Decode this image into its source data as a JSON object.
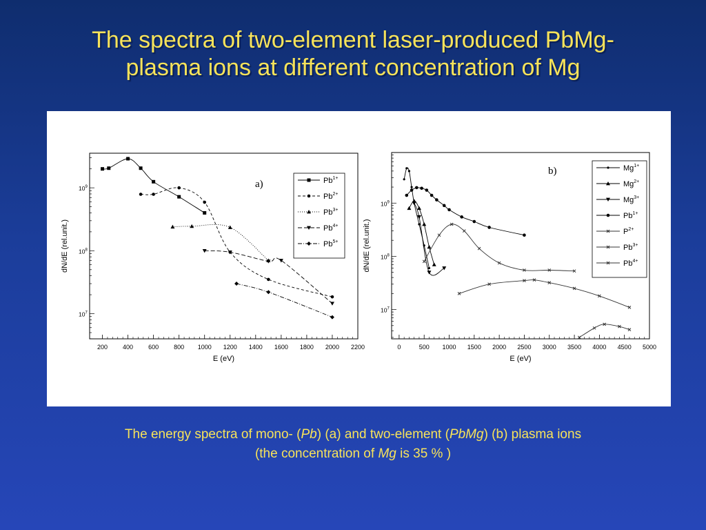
{
  "slide": {
    "title_line1": "The spectra of two-element laser-produced PbMg-",
    "title_line2": "plasma ions at different concentration of Mg",
    "caption": {
      "p1": "The energy spectra of mono- (",
      "pb": "Pb",
      "p2": ") (a) and two-element (",
      "pbmg": "PbMg",
      "p3": ") (b) plasma ions",
      "p4": "(the concentration of ",
      "mg": "Mg",
      "p5": " is 35 % )"
    }
  },
  "chart_data": [
    {
      "type": "line",
      "panel_label": "a)",
      "xlabel": "E  (eV)",
      "ylabel": "dN/dE  (rel.unit.)",
      "xlim": [
        100,
        2200
      ],
      "xticks": [
        200,
        400,
        600,
        800,
        1000,
        1200,
        1400,
        1600,
        1800,
        2000,
        2200
      ],
      "ylim_log10": [
        6.6,
        9.55
      ],
      "yscale": "log",
      "ytick_labels": [
        {
          "base": "10",
          "exp": "9",
          "log": 9
        },
        {
          "base": "10",
          "exp": "8",
          "log": 8
        },
        {
          "base": "10",
          "exp": "7",
          "log": 7
        }
      ],
      "legend_position": "top-right",
      "series": [
        {
          "name": "Pb",
          "charge": "1+",
          "marker": "square",
          "dash": "",
          "color": "#000000",
          "points": [
            [
              200,
              2000000000.0
            ],
            [
              250,
              2050000000.0
            ],
            [
              400,
              2900000000.0
            ],
            [
              500,
              2050000000.0
            ],
            [
              600,
              1250000000.0
            ],
            [
              800,
              720000000.0
            ],
            [
              1000,
              400000000.0
            ]
          ]
        },
        {
          "name": "Pb",
          "charge": "2+",
          "marker": "circle",
          "dash": "4,3",
          "color": "#000000",
          "points": [
            [
              500,
              790000000.0
            ],
            [
              600,
              790000000.0
            ],
            [
              800,
              1000000000.0
            ],
            [
              1000,
              590000000.0
            ],
            [
              1200,
              95000000.0
            ],
            [
              1500,
              35000000.0
            ],
            [
              2000,
              18500000.0
            ]
          ]
        },
        {
          "name": "Pb",
          "charge": "3+",
          "marker": "triangle-up",
          "dash": "1,2",
          "color": "#000000",
          "points": [
            [
              750,
              240000000.0
            ],
            [
              900,
              245000000.0
            ],
            [
              1200,
              235000000.0
            ],
            [
              1500,
              70000000.0
            ]
          ]
        },
        {
          "name": "Pb",
          "charge": "4+",
          "marker": "triangle-down",
          "dash": "6,3",
          "color": "#000000",
          "points": [
            [
              1000,
              100000000.0
            ],
            [
              1200,
              95000000.0
            ],
            [
              1500,
              68000000.0
            ],
            [
              1600,
              70000000.0
            ],
            [
              2000,
              14500000.0
            ]
          ]
        },
        {
          "name": "Pb",
          "charge": "5+",
          "marker": "diamond",
          "dash": "6,2,1,2",
          "color": "#000000",
          "points": [
            [
              1250,
              30000000.0
            ],
            [
              1500,
              22000000.0
            ],
            [
              2000,
              8800000.0
            ]
          ]
        }
      ]
    },
    {
      "type": "line",
      "panel_label": "b)",
      "xlabel": "E  (eV)",
      "ylabel": "dN/dE  (rel.unit.)",
      "xlim": [
        -150,
        5000
      ],
      "xticks": [
        0,
        500,
        1000,
        1500,
        2000,
        2500,
        3000,
        3500,
        4000,
        4500,
        5000
      ],
      "ylim_log10": [
        6.45,
        9.95
      ],
      "yscale": "log",
      "ytick_labels": [
        {
          "base": "10",
          "exp": "9",
          "log": 9
        },
        {
          "base": "10",
          "exp": "8",
          "log": 8
        },
        {
          "base": "10",
          "exp": "7",
          "log": 7
        }
      ],
      "legend_position": "top-right",
      "series": [
        {
          "name": "Mg",
          "charge": "1+",
          "marker": "dot",
          "color": "#000000",
          "points": [
            [
              100,
              2800000000.0
            ],
            [
              150,
              4500000000.0
            ],
            [
              200,
              4000000000.0
            ],
            [
              250,
              2000000000.0
            ],
            [
              300,
              1000000000.0
            ],
            [
              400,
              400000000.0
            ],
            [
              500,
              160000000.0
            ],
            [
              600,
              60000000.0
            ]
          ]
        },
        {
          "name": "Mg",
          "charge": "2+",
          "marker": "triangle-up",
          "color": "#000000",
          "points": [
            [
              200,
              800000000.0
            ],
            [
              300,
              1100000000.0
            ],
            [
              400,
              800000000.0
            ],
            [
              500,
              400000000.0
            ],
            [
              600,
              150000000.0
            ],
            [
              700,
              70000000.0
            ]
          ]
        },
        {
          "name": "Mg",
          "charge": "3+",
          "marker": "triangle-down",
          "color": "#000000",
          "points": [
            [
              300,
              1000000000.0
            ],
            [
              400,
              550000000.0
            ],
            [
              600,
              50000000.0
            ],
            [
              900,
              60000000.0
            ]
          ]
        },
        {
          "name": "Pb",
          "charge": "1+",
          "marker": "circle",
          "color": "#000000",
          "points": [
            [
              150,
              1400000000.0
            ],
            [
              250,
              1750000000.0
            ],
            [
              350,
              1950000000.0
            ],
            [
              450,
              1900000000.0
            ],
            [
              550,
              1750000000.0
            ],
            [
              650,
              1400000000.0
            ],
            [
              750,
              1150000000.0
            ],
            [
              900,
              900000000.0
            ],
            [
              1000,
              750000000.0
            ],
            [
              1250,
              550000000.0
            ],
            [
              1500,
              450000000.0
            ],
            [
              1800,
              350000000.0
            ],
            [
              2500,
              250000000.0
            ]
          ]
        },
        {
          "name": "P",
          "charge": "2+",
          "marker": "x",
          "color": "#333333",
          "points": [
            [
              500,
              80000000.0
            ],
            [
              800,
              250000000.0
            ],
            [
              1050,
              400000000.0
            ],
            [
              1300,
              300000000.0
            ],
            [
              1600,
              140000000.0
            ],
            [
              2000,
              75000000.0
            ],
            [
              2500,
              55000000.0
            ],
            [
              3000,
              55000000.0
            ],
            [
              3500,
              53000000.0
            ]
          ]
        },
        {
          "name": "Pb",
          "charge": "3+",
          "marker": "x",
          "color": "#333333",
          "points": [
            [
              1200,
              20000000.0
            ],
            [
              1800,
              30000000.0
            ],
            [
              2500,
              35000000.0
            ],
            [
              2700,
              36000000.0
            ],
            [
              3000,
              32000000.0
            ],
            [
              3500,
              25000000.0
            ],
            [
              4000,
              18000000.0
            ],
            [
              4600,
              11000000.0
            ]
          ]
        },
        {
          "name": "Pb",
          "charge": "4+",
          "marker": "x",
          "color": "#333333",
          "points": [
            [
              3600,
              3000000.0
            ],
            [
              3900,
              4500000.0
            ],
            [
              4100,
              5300000.0
            ],
            [
              4400,
              4800000.0
            ],
            [
              4600,
              4200000.0
            ]
          ]
        }
      ]
    }
  ]
}
